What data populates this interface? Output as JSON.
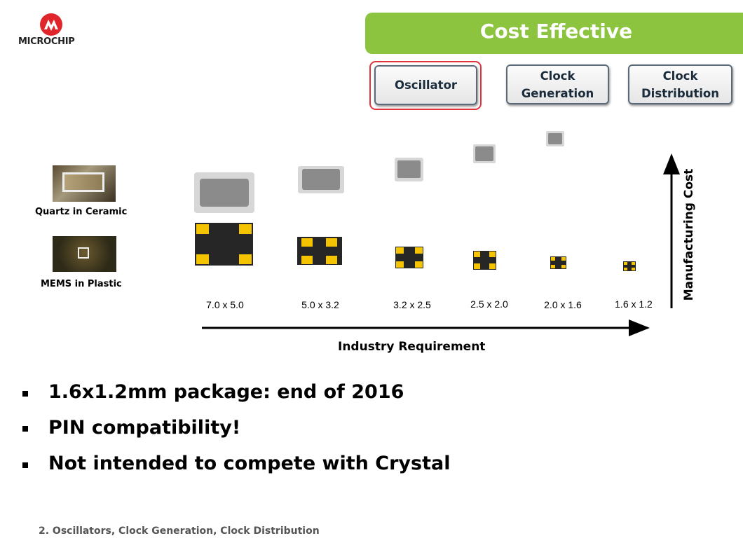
{
  "logo": {
    "text": "MICROCHIP"
  },
  "banner": {
    "title": "Cost Effective"
  },
  "buttons": [
    {
      "label": "Oscillator",
      "selected": true
    },
    {
      "label": "Clock\nGeneration",
      "selected": false
    },
    {
      "label": "Clock\nDistribution",
      "selected": false
    }
  ],
  "technologies": [
    {
      "label": "Quartz in Ceramic"
    },
    {
      "label": "MEMS in Plastic"
    }
  ],
  "packages": [
    "7.0 x 5.0",
    "5.0 x 3.2",
    "3.2 x 2.5",
    "2.5 x 2.0",
    "2.0 x 1.6",
    "1.6 x 1.2"
  ],
  "axes": {
    "x_label": "Industry Requirement",
    "y_label": "Manufacturing Cost"
  },
  "bullets": [
    "1.6x1.2mm package: end of 2016",
    "PIN compatibility!",
    "Not intended to compete with Crystal"
  ],
  "footer": "2. Oscillators, Clock Generation, Clock Distribution",
  "colors": {
    "banner": "#8cc43f",
    "highlight": "#e0333b",
    "pad": "#f5c400",
    "mems_body": "#262626",
    "ceramic": "#d7d7d7",
    "ceramic_lid": "#8b8b8b"
  }
}
